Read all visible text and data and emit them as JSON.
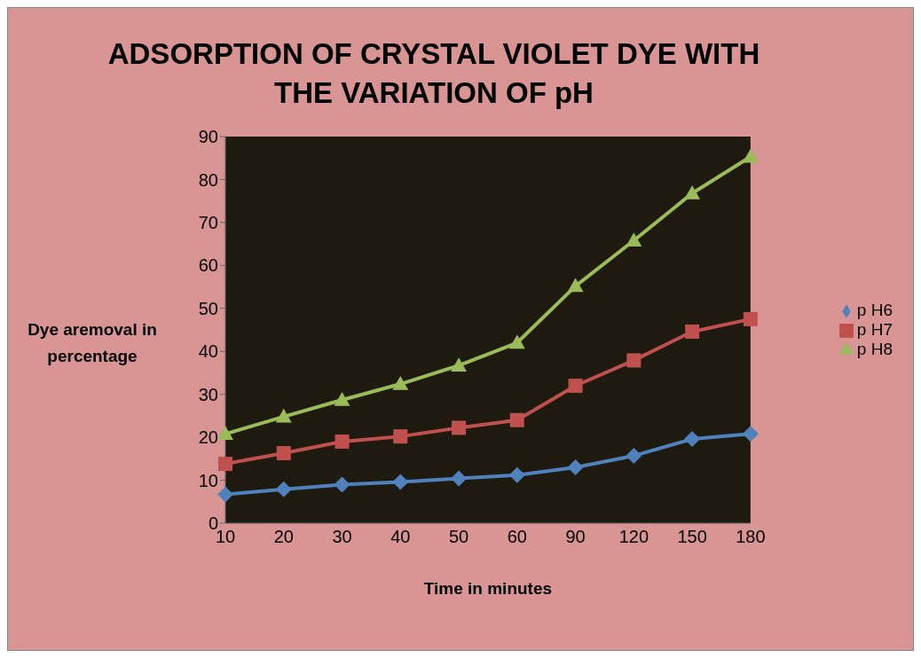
{
  "chart_data": {
    "type": "line",
    "title": "ADSORPTION OF CRYSTAL VIOLET DYE WITH THE VARIATION OF pH",
    "xlabel": "Time in minutes",
    "ylabel": "Dye aremoval in percentage",
    "categories": [
      "10",
      "20",
      "30",
      "40",
      "50",
      "60",
      "90",
      "120",
      "150",
      "180"
    ],
    "series": [
      {
        "name": "p H8",
        "color": "#9bbb59",
        "marker": "triangle",
        "values": [
          20.8,
          24.8,
          28.7,
          32.4,
          36.7,
          42,
          55.2,
          65.8,
          76.8,
          85.3
        ]
      },
      {
        "name": "p H7",
        "color": "#c0504d",
        "marker": "square",
        "values": [
          13.8,
          16.3,
          19,
          20.2,
          22.2,
          24,
          32,
          37.9,
          44.6,
          47.5
        ]
      },
      {
        "name": "p H6",
        "color": "#4f81bd",
        "marker": "diamond",
        "values": [
          6.7,
          7.9,
          9,
          9.6,
          10.4,
          11.2,
          13,
          15.7,
          19.6,
          20.8
        ]
      }
    ],
    "ylim": [
      0,
      90
    ],
    "yticks": [
      0,
      10,
      20,
      30,
      40,
      50,
      60,
      70,
      80,
      90
    ],
    "grid": false,
    "legend": "right"
  }
}
